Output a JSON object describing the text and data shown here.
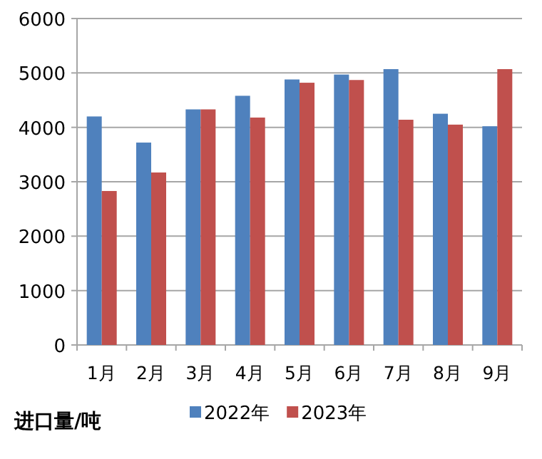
{
  "chart_data": {
    "type": "bar",
    "ylabel": "进口量/吨",
    "categories": [
      "1月",
      "2月",
      "3月",
      "4月",
      "5月",
      "6月",
      "7月",
      "8月",
      "9月"
    ],
    "series": [
      {
        "name": "2022年",
        "color": "#4f81bd",
        "values": [
          4200,
          3720,
          4330,
          4580,
          4880,
          4970,
          5070,
          4250,
          4020
        ]
      },
      {
        "name": "2023年",
        "color": "#c0504d",
        "values": [
          2830,
          3170,
          4330,
          4180,
          4820,
          4870,
          4140,
          4050,
          5070
        ]
      }
    ],
    "ylim": [
      0,
      6000
    ],
    "yticks": [
      0,
      1000,
      2000,
      3000,
      4000,
      5000,
      6000
    ],
    "grid": "y",
    "legend": "bottom"
  }
}
